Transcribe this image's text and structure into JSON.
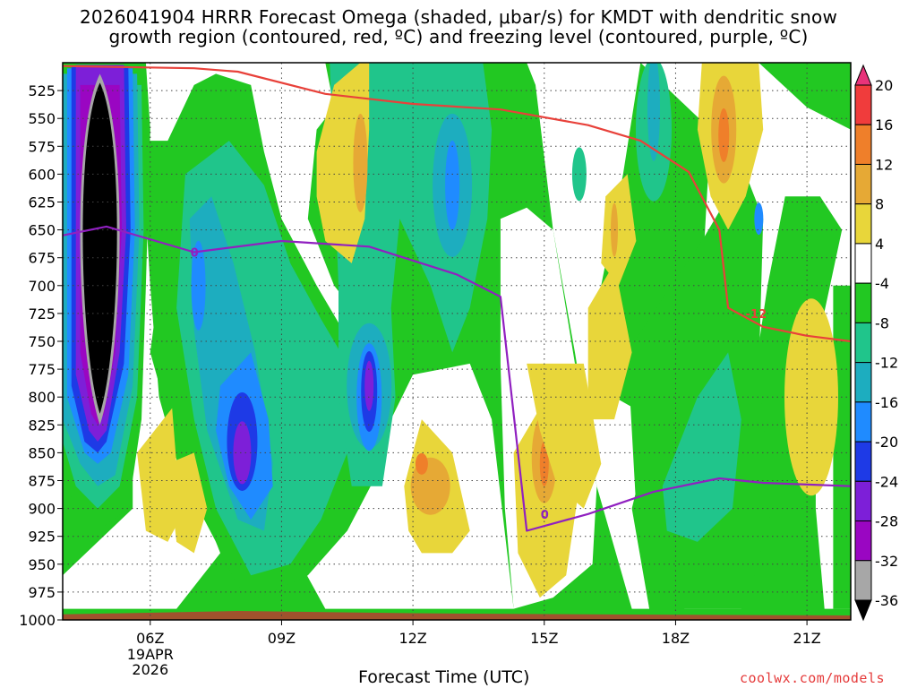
{
  "title": {
    "line1": "2026041904 HRRR Forecast Omega (shaded, μbar/s) for KMDT with dendritic snow",
    "line2": "growth region (contoured, red, ºC) and freezing level (contoured, purple, ºC)"
  },
  "credit": "coolwx.com/models",
  "chart_data": {
    "type": "heatmap",
    "xlabel": "Forecast Time (UTC)",
    "x_ticks": [
      "06Z",
      "09Z",
      "12Z",
      "15Z",
      "18Z",
      "21Z"
    ],
    "x_date_label": [
      "19APR",
      "2026"
    ],
    "x_range_hours": [
      4,
      22
    ],
    "y_ticks": [
      525,
      550,
      575,
      600,
      625,
      650,
      675,
      700,
      725,
      750,
      775,
      800,
      825,
      850,
      875,
      900,
      925,
      950,
      975,
      1000
    ],
    "y_range_hPa": [
      500,
      1000
    ],
    "y_scale": "pressure (inverted)",
    "grid": "dotted",
    "colorbar": {
      "ticks": [
        20,
        16,
        12,
        8,
        4,
        -4,
        -8,
        -12,
        -16,
        -20,
        -24,
        -28,
        -32,
        -36
      ],
      "colors": [
        "#e8337a",
        "#f03c3c",
        "#ef7f2a",
        "#e6a935",
        "#e8d63a",
        "#ffffff",
        "#22c822",
        "#20c58b",
        "#1dadbf",
        "#1f8bff",
        "#1e3ae6",
        "#7d1fd8",
        "#9a06c2",
        "#a7a7a7",
        "#000000"
      ]
    },
    "omega_features": [
      {
        "center_hour": 4.9,
        "center_hPa": 680,
        "min_value": -36,
        "note": "strong ascent core"
      },
      {
        "center_hour": 8.1,
        "center_hPa": 850,
        "min_value": -28
      },
      {
        "center_hour": 11.0,
        "center_hPa": 790,
        "min_value": -28
      },
      {
        "center_hour": 12.3,
        "center_hPa": 880,
        "max_value": 12
      },
      {
        "center_hour": 15.0,
        "center_hPa": 855,
        "max_value": 16
      },
      {
        "center_hour": 19.0,
        "center_hPa": 560,
        "max_value": 16
      },
      {
        "center_hour": 10.8,
        "center_hPa": 590,
        "max_value": 12
      }
    ],
    "contours": [
      {
        "name": "dendritic snow growth region",
        "color": "#e8413a",
        "label": "-12",
        "hours": [
          4,
          7,
          8,
          10,
          12,
          14,
          16,
          17.2,
          18.3,
          19,
          19.2,
          20,
          21,
          22
        ],
        "hPa": [
          503,
          505,
          508,
          528,
          537,
          542,
          556,
          570,
          598,
          650,
          720,
          737,
          745,
          750
        ]
      },
      {
        "name": "freezing level",
        "color": "#9020c0",
        "label": "0",
        "hours": [
          4,
          5,
          7,
          9,
          11,
          13,
          14,
          14.6,
          16,
          17.5,
          19,
          20,
          22
        ],
        "hPa": [
          655,
          647,
          670,
          660,
          665,
          690,
          710,
          920,
          905,
          885,
          873,
          877,
          880
        ]
      }
    ]
  }
}
